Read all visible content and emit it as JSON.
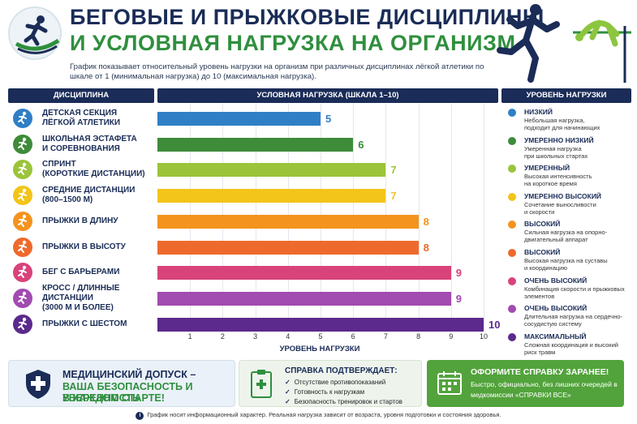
{
  "header": {
    "title_line1": "БЕГОВЫЕ И ПРЫЖКОВЫЕ ДИСЦИПЛИНЫ",
    "title_line2": "И УСЛОВНАЯ НАГРУЗКА НА ОРГАНИЗМ",
    "subtitle": "График показывает относительный уровень нагрузки на организм при различных дисциплинах лёгкой атлетики по шкале от 1 (минимальная нагрузка) до 10 (максимальная нагрузка)."
  },
  "columns": {
    "discipline": "ДИСЦИПЛИНА",
    "load": "УСЛОВНАЯ НАГРУЗКА (ШКАЛА 1–10)",
    "level": "УРОВЕНЬ НАГРУЗКИ"
  },
  "chart_data": {
    "type": "bar",
    "orientation": "horizontal",
    "xlabel": "УРОВЕНЬ НАГРУЗКИ",
    "xlim": [
      0,
      10
    ],
    "xticks": [
      1,
      2,
      3,
      4,
      5,
      6,
      7,
      8,
      9,
      10
    ],
    "grid": true,
    "categories": [
      "ДЕТСКАЯ СЕКЦИЯ\nЛЁГКОЙ АТЛЕТИКИ",
      "ШКОЛЬНАЯ ЭСТАФЕТА\nИ СОРЕВНОВАНИЯ",
      "СПРИНТ\n(КОРОТКИЕ ДИСТАНЦИИ)",
      "СРЕДНИЕ ДИСТАНЦИИ\n(800–1500 М)",
      "ПРЫЖКИ В ДЛИНУ",
      "ПРЫЖКИ В ВЫСОТУ",
      "БЕГ С БАРЬЕРАМИ",
      "КРОСС / ДЛИННЫЕ ДИСТАНЦИИ\n(3000 М И БОЛЕЕ)",
      "ПРЫЖКИ С ШЕСТОМ"
    ],
    "values": [
      5,
      6,
      7,
      7,
      8,
      8,
      9,
      9,
      10
    ],
    "colors": [
      "#2f7fc6",
      "#3e8b3a",
      "#9bc43a",
      "#f3c419",
      "#f4931e",
      "#ee6a2c",
      "#d8437a",
      "#a24bb0",
      "#5b2a8c"
    ],
    "icons": [
      "runner-icon",
      "relay-icon",
      "sprint-icon",
      "run-icon",
      "long-jump-icon",
      "high-jump-icon",
      "hurdle-icon",
      "cross-country-icon",
      "pole-vault-icon"
    ]
  },
  "legend": [
    {
      "title": "НИЗКИЙ",
      "desc": "Небольшая нагрузка,\nподходит для начинающих",
      "color": "#2f7fc6"
    },
    {
      "title": "УМЕРЕННО НИЗКИЙ",
      "desc": "Умеренная нагрузка\nпри школьных стартах",
      "color": "#3e8b3a"
    },
    {
      "title": "УМЕРЕННЫЙ",
      "desc": "Высокая интенсивность\nна короткое время",
      "color": "#9bc43a"
    },
    {
      "title": "УМЕРЕННО ВЫСОКИЙ",
      "desc": "Сочетание выносливости\nи скорости",
      "color": "#f3c419"
    },
    {
      "title": "ВЫСОКИЙ",
      "desc": "Сильная нагрузка на опорно-\nдвигательный аппарат",
      "color": "#f4931e"
    },
    {
      "title": "ВЫСОКИЙ",
      "desc": "Высокая нагрузка на суставы\nи координацию",
      "color": "#ee6a2c"
    },
    {
      "title": "ОЧЕНЬ ВЫСОКИЙ",
      "desc": "Комбинация скорости и прыжковых\nэлементов",
      "color": "#d8437a"
    },
    {
      "title": "ОЧЕНЬ ВЫСОКИЙ",
      "desc": "Длительная нагрузка на сердечно-\nсосудистую систему",
      "color": "#a24bb0"
    },
    {
      "title": "МАКСИМАЛЬНЫЙ",
      "desc": "Сложная координация и высокий\nриск травм",
      "color": "#5b2a8c"
    }
  ],
  "cards": {
    "medical": {
      "line1": "МЕДИЦИНСКИЙ ДОПУСК –",
      "line2": "ВАША БЕЗОПАСНОСТЬ И УВЕРЕННОСТЬ",
      "line3": "В КАЖДОМ СТАРТЕ!",
      "icon": "shield-cross-icon"
    },
    "certificate": {
      "title": "СПРАВКА ПОДТВЕРЖДАЕТ:",
      "items": [
        "Отсутствие противопоказаний",
        "Готовность к нагрузкам",
        "Безопасность тренировок и стартов"
      ],
      "icon": "clipboard-icon"
    },
    "cta": {
      "title": "ОФОРМИТЕ СПРАВКУ ЗАРАНЕЕ!",
      "body": "Быстро, официально, без лишних очередей в медкомиссии «СПРАВКИ ВСЕ»",
      "icon": "calendar-icon"
    }
  },
  "footnote": "График носит информационный характер. Реальная нагрузка зависит от возраста, уровня подготовки и состояния здоровья."
}
